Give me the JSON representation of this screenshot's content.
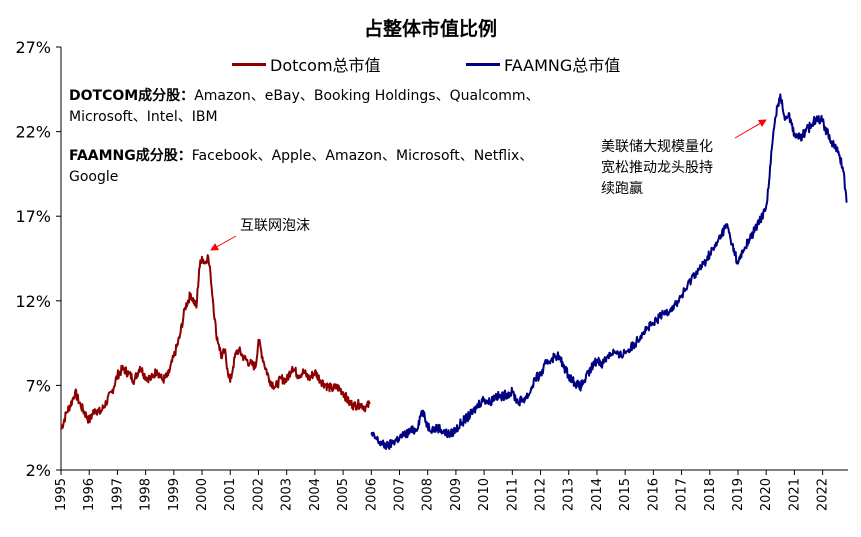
{
  "chart_data": {
    "type": "line",
    "title": "占整体市值比例",
    "xlabel": "",
    "ylabel": "",
    "ylim": [
      2,
      27
    ],
    "xlim": [
      1995,
      2022.9
    ],
    "y_ticks": [
      "2%",
      "7%",
      "12%",
      "17%",
      "22%",
      "27%"
    ],
    "y_tick_values": [
      2,
      7,
      12,
      17,
      22,
      27
    ],
    "x_ticks": [
      "1995",
      "1996",
      "1997",
      "1998",
      "1999",
      "2000",
      "2001",
      "2002",
      "2003",
      "2004",
      "2005",
      "2006",
      "2007",
      "2008",
      "2009",
      "2010",
      "2011",
      "2012",
      "2013",
      "2014",
      "2015",
      "2016",
      "2017",
      "2018",
      "2019",
      "2020",
      "2021",
      "2022"
    ],
    "legend_position": "top",
    "series": [
      {
        "name": "Dotcom总市值",
        "color": "#8B0000",
        "x": [
          1995.0,
          1995.2,
          1995.4,
          1995.5,
          1995.7,
          1995.9,
          1996.0,
          1996.2,
          1996.4,
          1996.6,
          1996.8,
          1997.0,
          1997.2,
          1997.4,
          1997.6,
          1997.8,
          1998.0,
          1998.2,
          1998.4,
          1998.6,
          1998.8,
          1999.0,
          1999.2,
          1999.4,
          1999.6,
          1999.8,
          1999.9,
          2000.0,
          2000.1,
          2000.2,
          2000.3,
          2000.4,
          2000.5,
          2000.6,
          2000.7,
          2000.8,
          2000.9,
          2001.0,
          2001.1,
          2001.2,
          2001.3,
          2001.5,
          2001.7,
          2001.9,
          2002.0,
          2002.2,
          2002.4,
          2002.6,
          2002.8,
          2003.0,
          2003.2,
          2003.4,
          2003.6,
          2003.8,
          2004.0,
          2004.2,
          2004.4,
          2004.6,
          2004.8,
          2005.0,
          2005.2,
          2005.4,
          2005.6,
          2005.8,
          2005.95
        ],
        "y": [
          4.4,
          5.4,
          6.1,
          6.6,
          5.8,
          5.2,
          4.9,
          5.6,
          5.4,
          6.0,
          6.6,
          7.6,
          8.0,
          7.7,
          7.3,
          8.1,
          7.5,
          7.4,
          7.9,
          7.3,
          7.6,
          8.7,
          9.8,
          11.6,
          12.4,
          11.6,
          13.9,
          14.6,
          14.2,
          14.7,
          13.6,
          11.8,
          10.1,
          9.4,
          8.6,
          9.1,
          8.0,
          7.2,
          8.1,
          8.9,
          9.1,
          8.6,
          8.3,
          8.1,
          9.7,
          8.3,
          7.3,
          6.9,
          7.4,
          7.3,
          8.1,
          7.6,
          7.8,
          7.4,
          7.8,
          7.3,
          7.0,
          6.8,
          6.9,
          6.6,
          6.0,
          5.8,
          5.9,
          5.7,
          5.9
        ]
      },
      {
        "name": "FAAMNG总市值",
        "color": "#000080",
        "x": [
          2006.0,
          2006.2,
          2006.4,
          2006.6,
          2006.8,
          2007.0,
          2007.2,
          2007.4,
          2007.6,
          2007.8,
          2008.0,
          2008.2,
          2008.4,
          2008.6,
          2008.8,
          2009.0,
          2009.2,
          2009.4,
          2009.6,
          2009.8,
          2010.0,
          2010.2,
          2010.4,
          2010.6,
          2010.8,
          2011.0,
          2011.2,
          2011.4,
          2011.6,
          2011.8,
          2012.0,
          2012.2,
          2012.4,
          2012.6,
          2012.8,
          2013.0,
          2013.2,
          2013.4,
          2013.6,
          2013.8,
          2014.0,
          2014.2,
          2014.4,
          2014.6,
          2014.8,
          2015.0,
          2015.2,
          2015.4,
          2015.6,
          2015.8,
          2016.0,
          2016.2,
          2016.4,
          2016.6,
          2016.8,
          2017.0,
          2017.2,
          2017.4,
          2017.6,
          2017.8,
          2018.0,
          2018.2,
          2018.4,
          2018.6,
          2018.8,
          2019.0,
          2019.2,
          2019.4,
          2019.6,
          2019.8,
          2020.0,
          2020.1,
          2020.2,
          2020.3,
          2020.4,
          2020.5,
          2020.6,
          2020.7,
          2020.8,
          2020.9,
          2021.0,
          2021.2,
          2021.4,
          2021.6,
          2021.8,
          2022.0,
          2022.2,
          2022.4,
          2022.6,
          2022.75,
          2022.85
        ],
        "y": [
          4.1,
          3.8,
          3.5,
          3.4,
          3.7,
          3.9,
          4.1,
          4.3,
          4.4,
          5.5,
          4.6,
          4.4,
          4.5,
          4.2,
          4.1,
          4.4,
          4.8,
          5.1,
          5.4,
          5.9,
          6.2,
          6.0,
          6.4,
          6.3,
          6.5,
          6.6,
          6.0,
          6.2,
          6.5,
          7.4,
          7.6,
          8.3,
          8.6,
          8.8,
          8.2,
          7.6,
          7.2,
          6.9,
          7.4,
          8.0,
          8.5,
          8.3,
          8.8,
          9.0,
          8.7,
          9.0,
          9.2,
          9.6,
          10.1,
          10.4,
          10.6,
          11.0,
          11.3,
          11.5,
          11.8,
          12.3,
          12.8,
          13.5,
          13.8,
          14.2,
          14.8,
          15.2,
          15.9,
          16.5,
          15.3,
          14.2,
          15.0,
          15.6,
          16.2,
          16.8,
          17.6,
          19.0,
          21.0,
          22.5,
          23.5,
          24.2,
          23.2,
          22.8,
          23.1,
          22.4,
          21.9,
          21.6,
          22.0,
          22.4,
          22.9,
          22.6,
          21.8,
          21.2,
          20.6,
          19.6,
          17.8
        ]
      }
    ]
  },
  "legend": {
    "dotcom": "Dotcom总市值",
    "faamng": "FAAMNG总市值"
  },
  "notes": {
    "dotcom_label": "DOTCOM成分股：",
    "dotcom_line1": "Amazon、eBay、Booking Holdings、Qualcomm、",
    "dotcom_line2": "Microsoft、Intel、IBM",
    "faamng_label": "FAAMNG成分股：",
    "faamng_line1": "Facebook、Apple、Amazon、Microsoft、Netflix、",
    "faamng_line2": "Google"
  },
  "annotations": {
    "bubble": "互联网泡沫",
    "fed_line1": "美联储大规模量化",
    "fed_line2": "宽松推动龙头股持",
    "fed_line3": "续跑赢"
  },
  "colors": {
    "dotcom": "#8B0000",
    "faamng": "#000080",
    "arrow": "#FF0000"
  }
}
